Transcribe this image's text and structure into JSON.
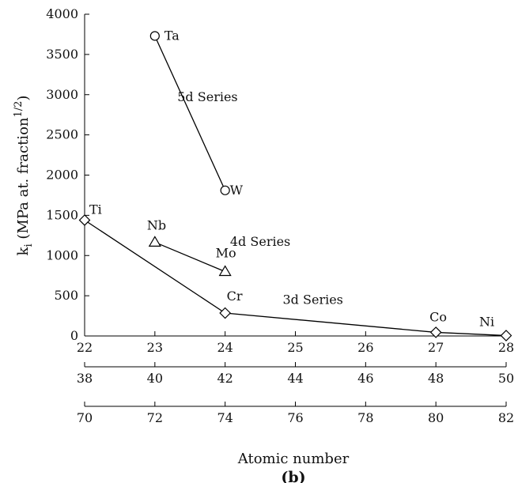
{
  "chart_data": {
    "type": "line",
    "ylabel_main": "k",
    "ylabel_sub": "i",
    "ylabel_rest": " (MPa at. fraction",
    "ylabel_sup": "1/2",
    "ylabel_end": ")",
    "xlabel": "Atomic number",
    "panel_label": "(b)",
    "ylim": [
      0,
      4000
    ],
    "yticks": [
      0,
      500,
      1000,
      1500,
      2000,
      2500,
      3000,
      3500,
      4000
    ],
    "xlim": [
      22,
      28
    ],
    "x_axes": [
      {
        "ticks": [
          "22",
          "23",
          "24",
          "25",
          "26",
          "27",
          "28"
        ]
      },
      {
        "ticks": [
          "38",
          "40",
          "42",
          "44",
          "46",
          "48",
          "50"
        ]
      },
      {
        "ticks": [
          "70",
          "72",
          "74",
          "76",
          "78",
          "80",
          "82"
        ]
      }
    ],
    "series": [
      {
        "marker": "diamond",
        "label": "3d Series",
        "points": [
          {
            "x": 22,
            "y": 1440,
            "label": "Ti"
          },
          {
            "x": 24,
            "y": 285,
            "label": "Cr"
          },
          {
            "x": 27,
            "y": 45,
            "label": "Co"
          },
          {
            "x": 28,
            "y": 5,
            "label": "Ni"
          }
        ]
      },
      {
        "marker": "triangle",
        "label": "4d Series",
        "points": [
          {
            "x": 23,
            "y": 1165,
            "label": "Nb"
          },
          {
            "x": 24,
            "y": 800,
            "label": "Mo"
          }
        ]
      },
      {
        "marker": "circle",
        "label": "5d Series",
        "points": [
          {
            "x": 23,
            "y": 3730,
            "label": "Ta"
          },
          {
            "x": 24,
            "y": 1810,
            "label": "W"
          }
        ]
      }
    ]
  }
}
